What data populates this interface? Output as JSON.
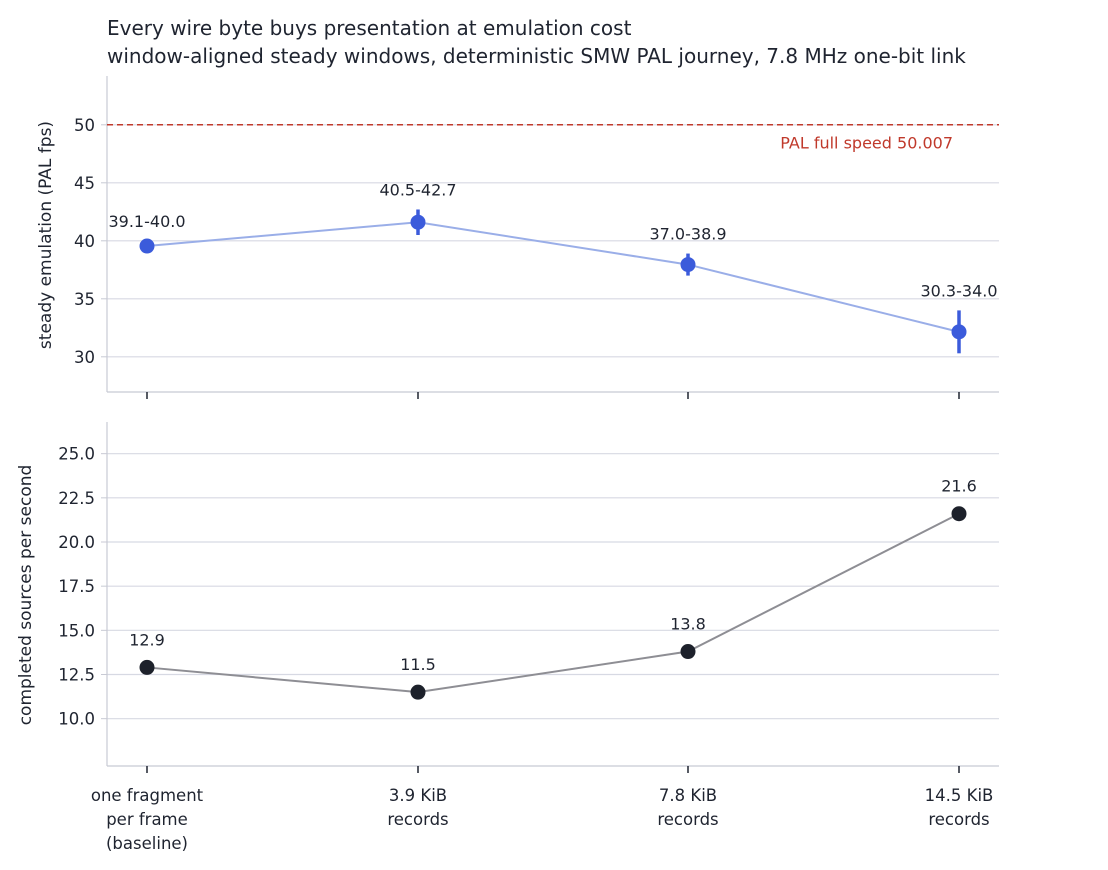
{
  "title": "Every wire byte buys presentation at emulation cost",
  "subtitle": "window-aligned steady windows, deterministic SMW PAL journey, 7.8 MHz one-bit link",
  "colors": {
    "top_line": "#9aaee8",
    "top_marker": "#3b5bdb",
    "bottom_line": "#8e8e94",
    "bottom_marker": "#1d212b",
    "reference": "#c0392b",
    "grid": "#d7d9e3",
    "axis": "#c8cad4"
  },
  "chart_data": [
    {
      "type": "line",
      "categories": [
        "one fragment\nper frame\n(baseline)",
        "3.9 KiB\nrecords",
        "7.8 KiB\nrecords",
        "14.5 KiB\nrecords"
      ],
      "ylabel": "steady emulation (PAL fps)",
      "ylim": [
        28,
        53
      ],
      "yticks": [
        30,
        35,
        40,
        45,
        50
      ],
      "grid": true,
      "series": [
        {
          "values": [
            39.55,
            41.6,
            37.95,
            32.15
          ],
          "ranges": [
            [
              39.1,
              40.0
            ],
            [
              40.5,
              42.7
            ],
            [
              37.0,
              38.9
            ],
            [
              30.3,
              34.0
            ]
          ],
          "labels": [
            "39.1-40.0",
            "40.5-42.7",
            "37.0-38.9",
            "30.3-34.0"
          ]
        }
      ],
      "reference_line": {
        "value": 50.007,
        "label": "PAL full speed 50.007"
      }
    },
    {
      "type": "line",
      "categories": [
        "one fragment\nper frame\n(baseline)",
        "3.9 KiB\nrecords",
        "7.8 KiB\nrecords",
        "14.5 KiB\nrecords"
      ],
      "ylabel": "completed sources per second",
      "ylim": [
        8,
        26
      ],
      "yticks": [
        10.0,
        12.5,
        15.0,
        17.5,
        20.0,
        22.5,
        25.0
      ],
      "grid": true,
      "series": [
        {
          "values": [
            12.9,
            11.5,
            13.8,
            21.6
          ],
          "labels": [
            "12.9",
            "11.5",
            "13.8",
            "21.6"
          ]
        }
      ]
    }
  ]
}
